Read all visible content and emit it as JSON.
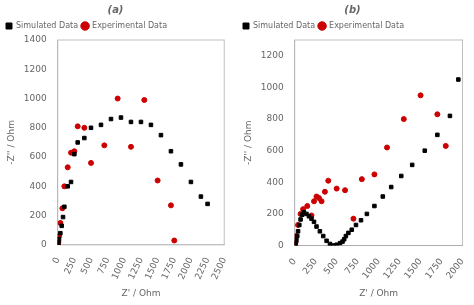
{
  "chart_data": [
    {
      "type": "scatter",
      "title": "(a)",
      "x_label": "Z' / Ohm",
      "y_label": "-Z'' / Ohm",
      "xlim": [
        0,
        2500
      ],
      "ylim": [
        0,
        1400
      ],
      "xticks": [
        0,
        250,
        500,
        750,
        1000,
        1250,
        1500,
        1750,
        2000,
        2250,
        2500
      ],
      "yticks": [
        0,
        200,
        400,
        600,
        800,
        1000,
        1200,
        1400
      ],
      "grid": false,
      "legend": "upper left",
      "series": [
        {
          "name": "Simulated Data",
          "color": "#000000",
          "marker": "square",
          "x": [
            5,
            10,
            20,
            40,
            60,
            80,
            100,
            150,
            200,
            250,
            300,
            400,
            500,
            650,
            800,
            950,
            1100,
            1250,
            1400,
            1550,
            1700,
            1850,
            2000,
            2150,
            2250
          ],
          "values": [
            5,
            15,
            40,
            80,
            130,
            190,
            260,
            400,
            430,
            620,
            700,
            730,
            800,
            820,
            860,
            870,
            840,
            840,
            820,
            750,
            640,
            550,
            430,
            330,
            280
          ]
        },
        {
          "name": "Experimental Data",
          "color": "#cc0000",
          "marker": "circle",
          "x": [
            5,
            10,
            20,
            40,
            70,
            100,
            150,
            200,
            250,
            300,
            400,
            500,
            700,
            900,
            1100,
            1300,
            1500,
            1700,
            1750
          ],
          "values": [
            5,
            20,
            60,
            150,
            250,
            400,
            530,
            630,
            640,
            810,
            800,
            560,
            680,
            1000,
            670,
            990,
            440,
            270,
            30
          ]
        }
      ]
    },
    {
      "type": "scatter",
      "title": "(b)",
      "x_label": "Z' / Ohm",
      "y_label": "-Z'' / Ohm",
      "xlim": [
        0,
        2000
      ],
      "ylim": [
        0,
        1300
      ],
      "xticks": [
        0,
        250,
        500,
        750,
        1000,
        1250,
        1500,
        1750,
        2000
      ],
      "yticks": [
        0,
        200,
        400,
        600,
        800,
        1000,
        1200
      ],
      "grid": false,
      "legend": "upper left",
      "series": [
        {
          "name": "Simulated Data",
          "color": "#000000",
          "marker": "square",
          "x": [
            5,
            10,
            20,
            30,
            40,
            55,
            70,
            90,
            110,
            140,
            170,
            200,
            230,
            260,
            300,
            340,
            380,
            420,
            460,
            500,
            540,
            570,
            590,
            610,
            640,
            680,
            730,
            790,
            860,
            950,
            1050,
            1150,
            1270,
            1400,
            1550,
            1700,
            1850,
            1950
          ],
          "values": [
            5,
            15,
            35,
            60,
            90,
            130,
            165,
            195,
            210,
            200,
            185,
            170,
            150,
            120,
            90,
            60,
            30,
            10,
            0,
            5,
            15,
            25,
            40,
            60,
            80,
            100,
            130,
            160,
            200,
            250,
            310,
            370,
            440,
            510,
            600,
            700,
            820,
            1050
          ]
        },
        {
          "name": "Experimental Data",
          "color": "#cc0000",
          "marker": "circle",
          "x": [
            5,
            10,
            20,
            40,
            70,
            100,
            150,
            200,
            230,
            260,
            290,
            320,
            360,
            400,
            500,
            600,
            700,
            800,
            950,
            1100,
            1300,
            1500,
            1700,
            1800
          ],
          "values": [
            5,
            20,
            60,
            130,
            200,
            230,
            250,
            190,
            280,
            310,
            300,
            280,
            340,
            410,
            360,
            350,
            170,
            420,
            450,
            620,
            800,
            950,
            830,
            630
          ]
        }
      ]
    }
  ]
}
